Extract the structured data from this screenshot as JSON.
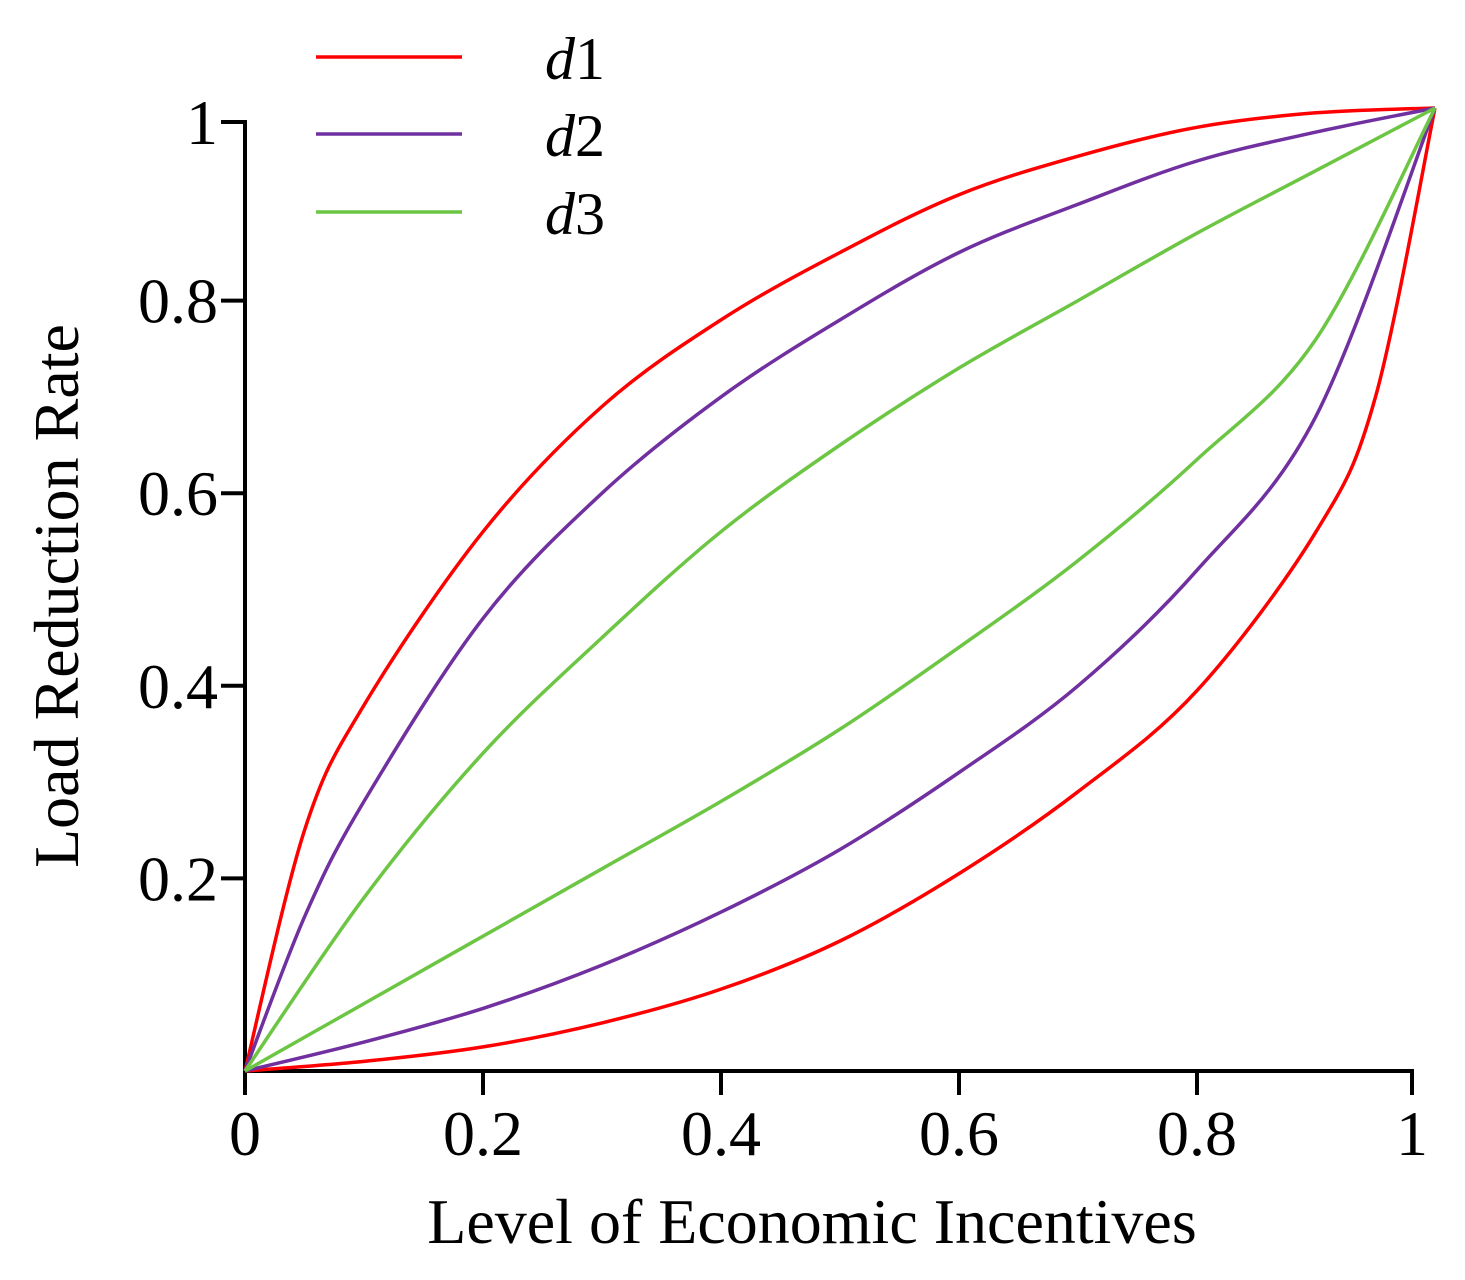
{
  "chart_data": {
    "type": "line",
    "xlabel": "Level of Economic Incentives",
    "ylabel": "Load Reduction Rate",
    "xlim": [
      0,
      1
    ],
    "ylim": [
      0,
      1
    ],
    "x_ticks": [
      "0",
      "0.2",
      "0.4",
      "0.6",
      "0.8",
      "1"
    ],
    "y_ticks": [
      "0.2",
      "0.4",
      "0.6",
      "0.8",
      "1"
    ],
    "grid": false,
    "legend_position": "top-left",
    "series": [
      {
        "name": "d1",
        "color": "#ff0000",
        "upper": {
          "x": [
            0,
            0.05,
            0.1,
            0.2,
            0.3,
            0.4,
            0.5,
            0.6,
            0.7,
            0.8,
            0.9,
            1.0
          ],
          "y": [
            0,
            0.25,
            0.38,
            0.56,
            0.69,
            0.78,
            0.85,
            0.91,
            0.95,
            0.98,
            0.995,
            1.0
          ]
        },
        "lower": {
          "x": [
            0,
            0.1,
            0.2,
            0.3,
            0.4,
            0.5,
            0.6,
            0.7,
            0.8,
            0.9,
            0.95,
            1.0
          ],
          "y": [
            0,
            0.01,
            0.025,
            0.05,
            0.085,
            0.135,
            0.205,
            0.29,
            0.395,
            0.56,
            0.7,
            1.0
          ]
        }
      },
      {
        "name": "d2",
        "color": "#7030a0",
        "upper": {
          "x": [
            0,
            0.05,
            0.1,
            0.2,
            0.3,
            0.4,
            0.5,
            0.6,
            0.7,
            0.8,
            0.9,
            1.0
          ],
          "y": [
            0,
            0.16,
            0.28,
            0.47,
            0.6,
            0.7,
            0.78,
            0.85,
            0.9,
            0.945,
            0.975,
            1.0
          ]
        },
        "lower": {
          "x": [
            0,
            0.1,
            0.2,
            0.3,
            0.4,
            0.5,
            0.6,
            0.7,
            0.8,
            0.9,
            1.0
          ],
          "y": [
            0,
            0.03,
            0.065,
            0.11,
            0.165,
            0.23,
            0.31,
            0.4,
            0.52,
            0.68,
            1.0
          ]
        }
      },
      {
        "name": "d3",
        "color": "#6cc644",
        "upper": {
          "x": [
            0,
            0.1,
            0.2,
            0.3,
            0.4,
            0.5,
            0.6,
            0.7,
            0.8,
            0.9,
            1.0
          ],
          "y": [
            0,
            0.18,
            0.33,
            0.45,
            0.56,
            0.65,
            0.73,
            0.8,
            0.87,
            0.935,
            1.0
          ]
        },
        "lower": {
          "x": [
            0,
            0.1,
            0.2,
            0.3,
            0.4,
            0.5,
            0.6,
            0.7,
            0.8,
            0.9,
            1.0
          ],
          "y": [
            0,
            0.07,
            0.14,
            0.21,
            0.28,
            0.355,
            0.44,
            0.53,
            0.635,
            0.76,
            1.0
          ]
        }
      }
    ]
  }
}
